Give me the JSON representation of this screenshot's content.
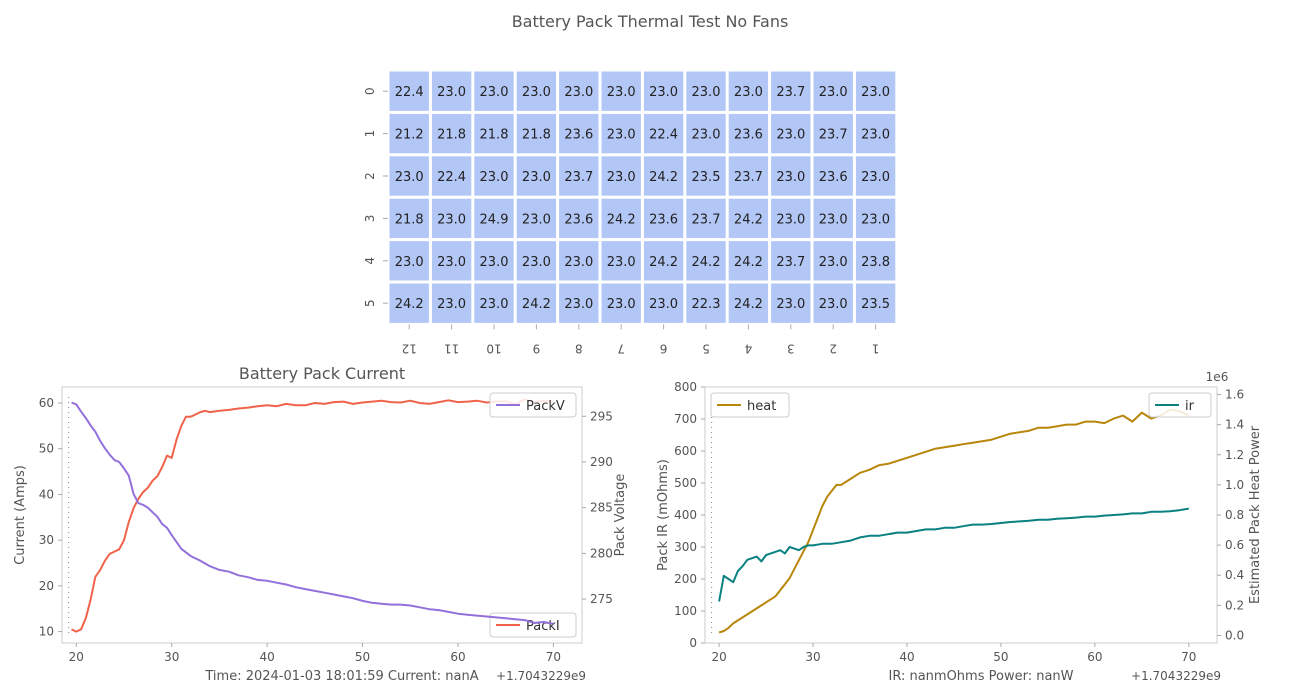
{
  "suptitle": "Battery Pack Thermal Test No Fans",
  "chart_data": [
    {
      "type": "heatmap",
      "row_labels": [
        "0",
        "1",
        "2",
        "3",
        "4",
        "5"
      ],
      "col_labels": [
        "12",
        "11",
        "10",
        "9",
        "8",
        "7",
        "6",
        "5",
        "4",
        "3",
        "2",
        "1"
      ],
      "cell_color": "#b3c7f7",
      "values": [
        [
          "22.4",
          "23.0",
          "23.0",
          "23.0",
          "23.0",
          "23.0",
          "23.0",
          "23.0",
          "23.0",
          "23.7",
          "23.0",
          "23.0"
        ],
        [
          "21.2",
          "21.8",
          "21.8",
          "21.8",
          "23.6",
          "23.0",
          "22.4",
          "23.0",
          "23.6",
          "23.0",
          "23.7",
          "23.0"
        ],
        [
          "23.0",
          "22.4",
          "23.0",
          "23.0",
          "23.7",
          "23.0",
          "24.2",
          "23.5",
          "23.7",
          "23.0",
          "23.6",
          "23.0"
        ],
        [
          "21.8",
          "23.0",
          "24.9",
          "23.0",
          "23.6",
          "24.2",
          "23.6",
          "23.7",
          "24.2",
          "23.0",
          "23.0",
          "23.0"
        ],
        [
          "23.0",
          "23.0",
          "23.0",
          "23.0",
          "23.0",
          "23.0",
          "24.2",
          "24.2",
          "24.2",
          "23.7",
          "23.0",
          "23.8"
        ],
        [
          "24.2",
          "23.0",
          "23.0",
          "24.2",
          "23.0",
          "23.0",
          "23.0",
          "22.3",
          "24.2",
          "23.0",
          "23.0",
          "23.5"
        ]
      ]
    },
    {
      "type": "line",
      "title": "Battery Pack Current",
      "xlabel": "Time: 2024-01-03 18:01:59 Current: nanA",
      "x_offset_label": "+1.7043229e9",
      "ylabel": "Current (Amps)",
      "y2label": "Pack Voltage",
      "xlim": [
        18.5,
        73
      ],
      "xticks": [
        20,
        30,
        40,
        50,
        60,
        70
      ],
      "ylim": [
        7.5,
        63.5
      ],
      "yticks": [
        10,
        20,
        30,
        40,
        50,
        60
      ],
      "y2lim": [
        270.2,
        298.2
      ],
      "y2ticks": [
        275,
        280,
        285,
        290,
        295
      ],
      "series": [
        {
          "name": "PackI",
          "axis": "left",
          "color": "#f0634a",
          "legend_loc": "lower right",
          "x": [
            19.5,
            20,
            20.5,
            21,
            21.5,
            22,
            22.5,
            23,
            23.5,
            24,
            24.5,
            25,
            25.5,
            26,
            26.5,
            27,
            27.5,
            28,
            28.5,
            29,
            29.5,
            30,
            30.5,
            31,
            31.5,
            32,
            32.5,
            33,
            33.5,
            34,
            35,
            36,
            37,
            38,
            39,
            40,
            41,
            42,
            43,
            44,
            45,
            46,
            47,
            48,
            49,
            50,
            51,
            52,
            53,
            54,
            55,
            56,
            57,
            58,
            59,
            60,
            61,
            62,
            63,
            64,
            65,
            66,
            67,
            68,
            69,
            70
          ],
          "values": [
            10.5,
            10,
            10.5,
            13,
            17,
            22,
            23.5,
            25.5,
            27,
            27.5,
            28,
            30,
            34,
            37,
            39,
            40.5,
            41.5,
            43,
            44,
            46,
            48.5,
            48,
            52,
            55,
            57,
            57,
            57.5,
            58,
            58.3,
            58,
            58.3,
            58.5,
            58.8,
            59,
            59.3,
            59.5,
            59.3,
            59.8,
            59.5,
            59.5,
            60,
            59.8,
            60.2,
            60.3,
            59.8,
            60.1,
            60.3,
            60.5,
            60.2,
            60.1,
            60.5,
            60,
            59.8,
            60.2,
            60.6,
            60.2,
            60.3,
            60.5,
            60.1,
            60.3,
            60.4,
            59.7,
            60.8,
            60.2,
            60.5,
            60.3
          ]
        },
        {
          "name": "PackV",
          "axis": "right",
          "color": "#9370db",
          "legend_loc": "upper right",
          "x": [
            19.5,
            20,
            20.5,
            21,
            21.5,
            22,
            22.5,
            23,
            23.5,
            24,
            24.5,
            25,
            25.5,
            26,
            26.5,
            27,
            27.5,
            28,
            28.5,
            29,
            29.5,
            30,
            31,
            32,
            33,
            34,
            35,
            36,
            37,
            38,
            39,
            40,
            41,
            42,
            43,
            44,
            45,
            46,
            47,
            48,
            49,
            50,
            51,
            52,
            53,
            54,
            55,
            56,
            57,
            58,
            59,
            60,
            61,
            62,
            63,
            64,
            65,
            66,
            67,
            68,
            69,
            70
          ],
          "values": [
            296.5,
            296.3,
            295.5,
            294.8,
            294,
            293.3,
            292.3,
            291.5,
            290.8,
            290.2,
            290,
            289.3,
            288.5,
            286.5,
            285.5,
            285.3,
            285,
            284.5,
            284,
            283.2,
            282.8,
            282,
            280.5,
            279.7,
            279.2,
            278.6,
            278.2,
            278,
            277.6,
            277.4,
            277.1,
            277,
            276.8,
            276.6,
            276.3,
            276.1,
            275.9,
            275.7,
            275.5,
            275.3,
            275.1,
            274.8,
            274.6,
            274.5,
            274.4,
            274.4,
            274.3,
            274.1,
            273.9,
            273.8,
            273.6,
            273.4,
            273.3,
            273.2,
            273.1,
            273,
            272.9,
            272.8,
            272.7,
            272.4,
            272.5,
            272.3
          ]
        }
      ]
    },
    {
      "type": "line",
      "title": "",
      "xlabel": "IR: nanmOhms Power: nanW",
      "x_offset_label": "+1.7043229e9",
      "ylabel": "Pack IR (mOhms)",
      "y2label": "Estimated Pack Heat Power",
      "y2_scale_label": "1e6",
      "xlim": [
        18.5,
        73
      ],
      "xticks": [
        20,
        30,
        40,
        50,
        60,
        70
      ],
      "ylim": [
        0,
        800
      ],
      "yticks": [
        0,
        100,
        200,
        300,
        400,
        500,
        600,
        700,
        800
      ],
      "y2lim": [
        -0.05,
        1.65
      ],
      "y2ticks": [
        0.0,
        0.2,
        0.4,
        0.6,
        0.8,
        1.0,
        1.2,
        1.4,
        1.6
      ],
      "series": [
        {
          "name": "heat",
          "axis": "right",
          "color": "#b8860b",
          "legend_loc": "upper left",
          "x": [
            20,
            20.5,
            21,
            21.5,
            22,
            22.5,
            23,
            23.5,
            24,
            24.5,
            25,
            25.5,
            26,
            26.5,
            27,
            27.5,
            28,
            28.5,
            29,
            29.5,
            30,
            30.5,
            31,
            31.5,
            32,
            32.5,
            33,
            34,
            35,
            36,
            37,
            38,
            39,
            40,
            41,
            42,
            43,
            44,
            45,
            46,
            47,
            48,
            49,
            50,
            51,
            52,
            53,
            54,
            55,
            56,
            57,
            58,
            59,
            60,
            61,
            62,
            63,
            64,
            65,
            66,
            67,
            68,
            69,
            70
          ],
          "values": [
            0.02,
            0.03,
            0.05,
            0.08,
            0.1,
            0.12,
            0.14,
            0.16,
            0.18,
            0.2,
            0.22,
            0.24,
            0.26,
            0.3,
            0.34,
            0.38,
            0.44,
            0.5,
            0.56,
            0.62,
            0.7,
            0.78,
            0.86,
            0.92,
            0.96,
            1.0,
            1.0,
            1.04,
            1.08,
            1.1,
            1.13,
            1.14,
            1.16,
            1.18,
            1.2,
            1.22,
            1.24,
            1.25,
            1.26,
            1.27,
            1.28,
            1.29,
            1.3,
            1.32,
            1.34,
            1.35,
            1.36,
            1.38,
            1.38,
            1.39,
            1.4,
            1.4,
            1.42,
            1.42,
            1.41,
            1.44,
            1.46,
            1.42,
            1.48,
            1.44,
            1.46,
            1.5,
            1.49,
            1.46
          ]
        },
        {
          "name": "ir",
          "axis": "left",
          "color": "#0a8080",
          "legend_loc": "upper right",
          "x": [
            20,
            20.5,
            21,
            21.5,
            22,
            22.5,
            23,
            23.5,
            24,
            24.5,
            25,
            25.5,
            26,
            26.5,
            27,
            27.5,
            28,
            28.5,
            29,
            29.5,
            30,
            31,
            32,
            33,
            34,
            35,
            36,
            37,
            38,
            39,
            40,
            41,
            42,
            43,
            44,
            45,
            46,
            47,
            48,
            49,
            50,
            51,
            52,
            53,
            54,
            55,
            56,
            57,
            58,
            59,
            60,
            61,
            62,
            63,
            64,
            65,
            66,
            67,
            68,
            69,
            70
          ],
          "values": [
            130,
            210,
            200,
            190,
            225,
            240,
            260,
            265,
            270,
            255,
            275,
            280,
            285,
            290,
            280,
            300,
            295,
            290,
            300,
            305,
            305,
            310,
            310,
            315,
            320,
            330,
            335,
            335,
            340,
            345,
            345,
            350,
            355,
            355,
            360,
            360,
            365,
            370,
            370,
            372,
            375,
            378,
            380,
            382,
            385,
            385,
            388,
            390,
            392,
            395,
            395,
            398,
            400,
            402,
            405,
            405,
            410,
            410,
            412,
            415,
            420
          ]
        }
      ]
    }
  ]
}
